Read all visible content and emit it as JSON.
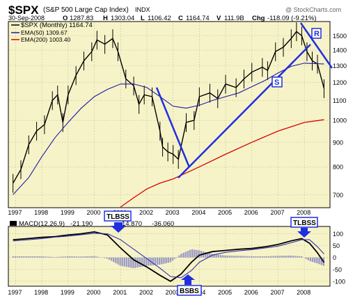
{
  "header": {
    "symbol": "$SPX",
    "name": "(S&P 500 Large Cap Index)",
    "exchange": "INDX",
    "watermark": "@ StockCharts.com",
    "date": "30-Sep-2008",
    "quote": {
      "o_label": "O",
      "o": "1287.83",
      "h_label": "H",
      "h": "1303.04",
      "l_label": "L",
      "l": "1106.42",
      "c_label": "C",
      "c": "1164.74",
      "v_label": "V",
      "v": "111.9B",
      "chg_label": "Chg",
      "chg": "-118.09 (-9.21%)"
    }
  },
  "colors": {
    "panel_bg": "#f7f3c8",
    "price": "#000000",
    "ema50": "#1a1aa6",
    "ema200": "#d80000",
    "annotation": "#1f2fe0",
    "histogram": "#9c9cc4",
    "macd_signal": "#3030b0"
  },
  "legend": {
    "price": "$SPX (Monthly) 1164.74",
    "ema50": "EMA(50) 1309.67",
    "ema200": "EMA(200) 1003.40"
  },
  "macd_label": {
    "title": "MACD(12,26,9)",
    "macd": "-21.190",
    "signal": "14.870",
    "hist": "-36.060"
  },
  "annotations": {
    "resistance_label": "R",
    "support_label": "S",
    "tlbss_left": "TLBSS",
    "tlbss_right": "TLBSS",
    "bsbs": "BSBS"
  },
  "chart_data": [
    {
      "type": "line",
      "x_labels": [
        "1997",
        "1998",
        "1999",
        "2000",
        "2001",
        "2002",
        "2003",
        "2004",
        "2005",
        "2006",
        "2007",
        "2008"
      ],
      "y_ticks": [
        700,
        800,
        900,
        1000,
        1100,
        1200,
        1300,
        1400,
        1500
      ],
      "ylim": [
        660,
        1600
      ],
      "scale": "log",
      "series": [
        {
          "name": "$SPX (Monthly) 1164.74",
          "x": [
            1996.9,
            1997.2,
            1997.5,
            1997.8,
            1998.1,
            1998.4,
            1998.6,
            1998.8,
            1999.0,
            1999.3,
            1999.6,
            1999.9,
            2000.1,
            2000.4,
            2000.7,
            2000.9,
            2001.2,
            2001.5,
            2001.7,
            2001.9,
            2002.2,
            2002.5,
            2002.6,
            2002.8,
            2003.0,
            2003.2,
            2003.5,
            2003.8,
            2004.0,
            2004.4,
            2004.7,
            2005.0,
            2005.4,
            2005.7,
            2006.0,
            2006.4,
            2006.6,
            2006.9,
            2007.2,
            2007.5,
            2007.7,
            2007.9,
            2008.1,
            2008.3,
            2008.5,
            2008.75
          ],
          "values": [
            740,
            790,
            890,
            950,
            980,
            1100,
            1130,
            990,
            1130,
            1240,
            1330,
            1390,
            1470,
            1440,
            1480,
            1390,
            1220,
            1180,
            1080,
            1130,
            1120,
            950,
            880,
            860,
            850,
            830,
            990,
            1000,
            1120,
            1140,
            1110,
            1190,
            1170,
            1220,
            1260,
            1290,
            1270,
            1390,
            1420,
            1480,
            1530,
            1500,
            1390,
            1330,
            1310,
            1165
          ]
        },
        {
          "name": "EMA(50) 1309.67",
          "x": [
            1996.9,
            1997.5,
            1998.0,
            1998.5,
            1999.0,
            1999.5,
            2000.0,
            2000.5,
            2001.0,
            2001.5,
            2002.0,
            2002.5,
            2003.0,
            2003.5,
            2004.0,
            2004.5,
            2005.0,
            2005.5,
            2006.0,
            2006.5,
            2007.0,
            2007.5,
            2008.0,
            2008.75
          ],
          "values": [
            700,
            760,
            840,
            920,
            990,
            1060,
            1120,
            1160,
            1190,
            1190,
            1170,
            1120,
            1070,
            1060,
            1075,
            1100,
            1120,
            1140,
            1175,
            1210,
            1255,
            1295,
            1315,
            1310
          ]
        },
        {
          "name": "EMA(200) 1003.40",
          "x": [
            2001.0,
            2001.5,
            2002.0,
            2002.5,
            2003.0,
            2004.0,
            2005.0,
            2006.0,
            2007.0,
            2008.0,
            2008.75
          ],
          "values": [
            660,
            690,
            720,
            740,
            755,
            800,
            850,
            900,
            950,
            990,
            1003
          ]
        }
      ]
    },
    {
      "type": "line",
      "title": "MACD(12,26,9)",
      "x_labels": [
        "1997",
        "1998",
        "1999",
        "2000",
        "2001",
        "2002",
        "2003",
        "2004",
        "2005",
        "2006",
        "2007",
        "2008"
      ],
      "y_ticks": [
        100,
        50,
        0,
        -50,
        -100
      ],
      "ylim": [
        -115,
        125
      ],
      "series": [
        {
          "name": "MACD",
          "x": [
            1996.9,
            1997.5,
            1998.0,
            1998.5,
            1999.0,
            1999.5,
            2000.0,
            2000.5,
            2001.0,
            2001.5,
            2002.0,
            2002.5,
            2002.9,
            2003.3,
            2003.7,
            2004.0,
            2004.5,
            2005.0,
            2005.5,
            2006.0,
            2006.5,
            2007.0,
            2007.5,
            2007.9,
            2008.2,
            2008.5,
            2008.75
          ],
          "values": [
            75,
            80,
            85,
            88,
            95,
            100,
            108,
            95,
            40,
            -10,
            -40,
            -75,
            -100,
            -70,
            -20,
            10,
            25,
            30,
            35,
            38,
            45,
            55,
            70,
            80,
            60,
            20,
            -21
          ]
        },
        {
          "name": "Signal",
          "x": [
            1996.9,
            1997.5,
            1998.0,
            1998.5,
            1999.0,
            1999.5,
            2000.0,
            2000.5,
            2001.0,
            2001.5,
            2002.0,
            2002.5,
            2002.9,
            2003.3,
            2003.7,
            2004.0,
            2004.5,
            2005.0,
            2005.5,
            2006.0,
            2006.5,
            2007.0,
            2007.5,
            2007.9,
            2008.2,
            2008.5,
            2008.75
          ],
          "values": [
            70,
            75,
            80,
            86,
            90,
            96,
            102,
            100,
            75,
            35,
            -5,
            -45,
            -80,
            -85,
            -55,
            -20,
            10,
            22,
            28,
            33,
            40,
            48,
            62,
            75,
            75,
            45,
            15
          ]
        }
      ]
    }
  ]
}
